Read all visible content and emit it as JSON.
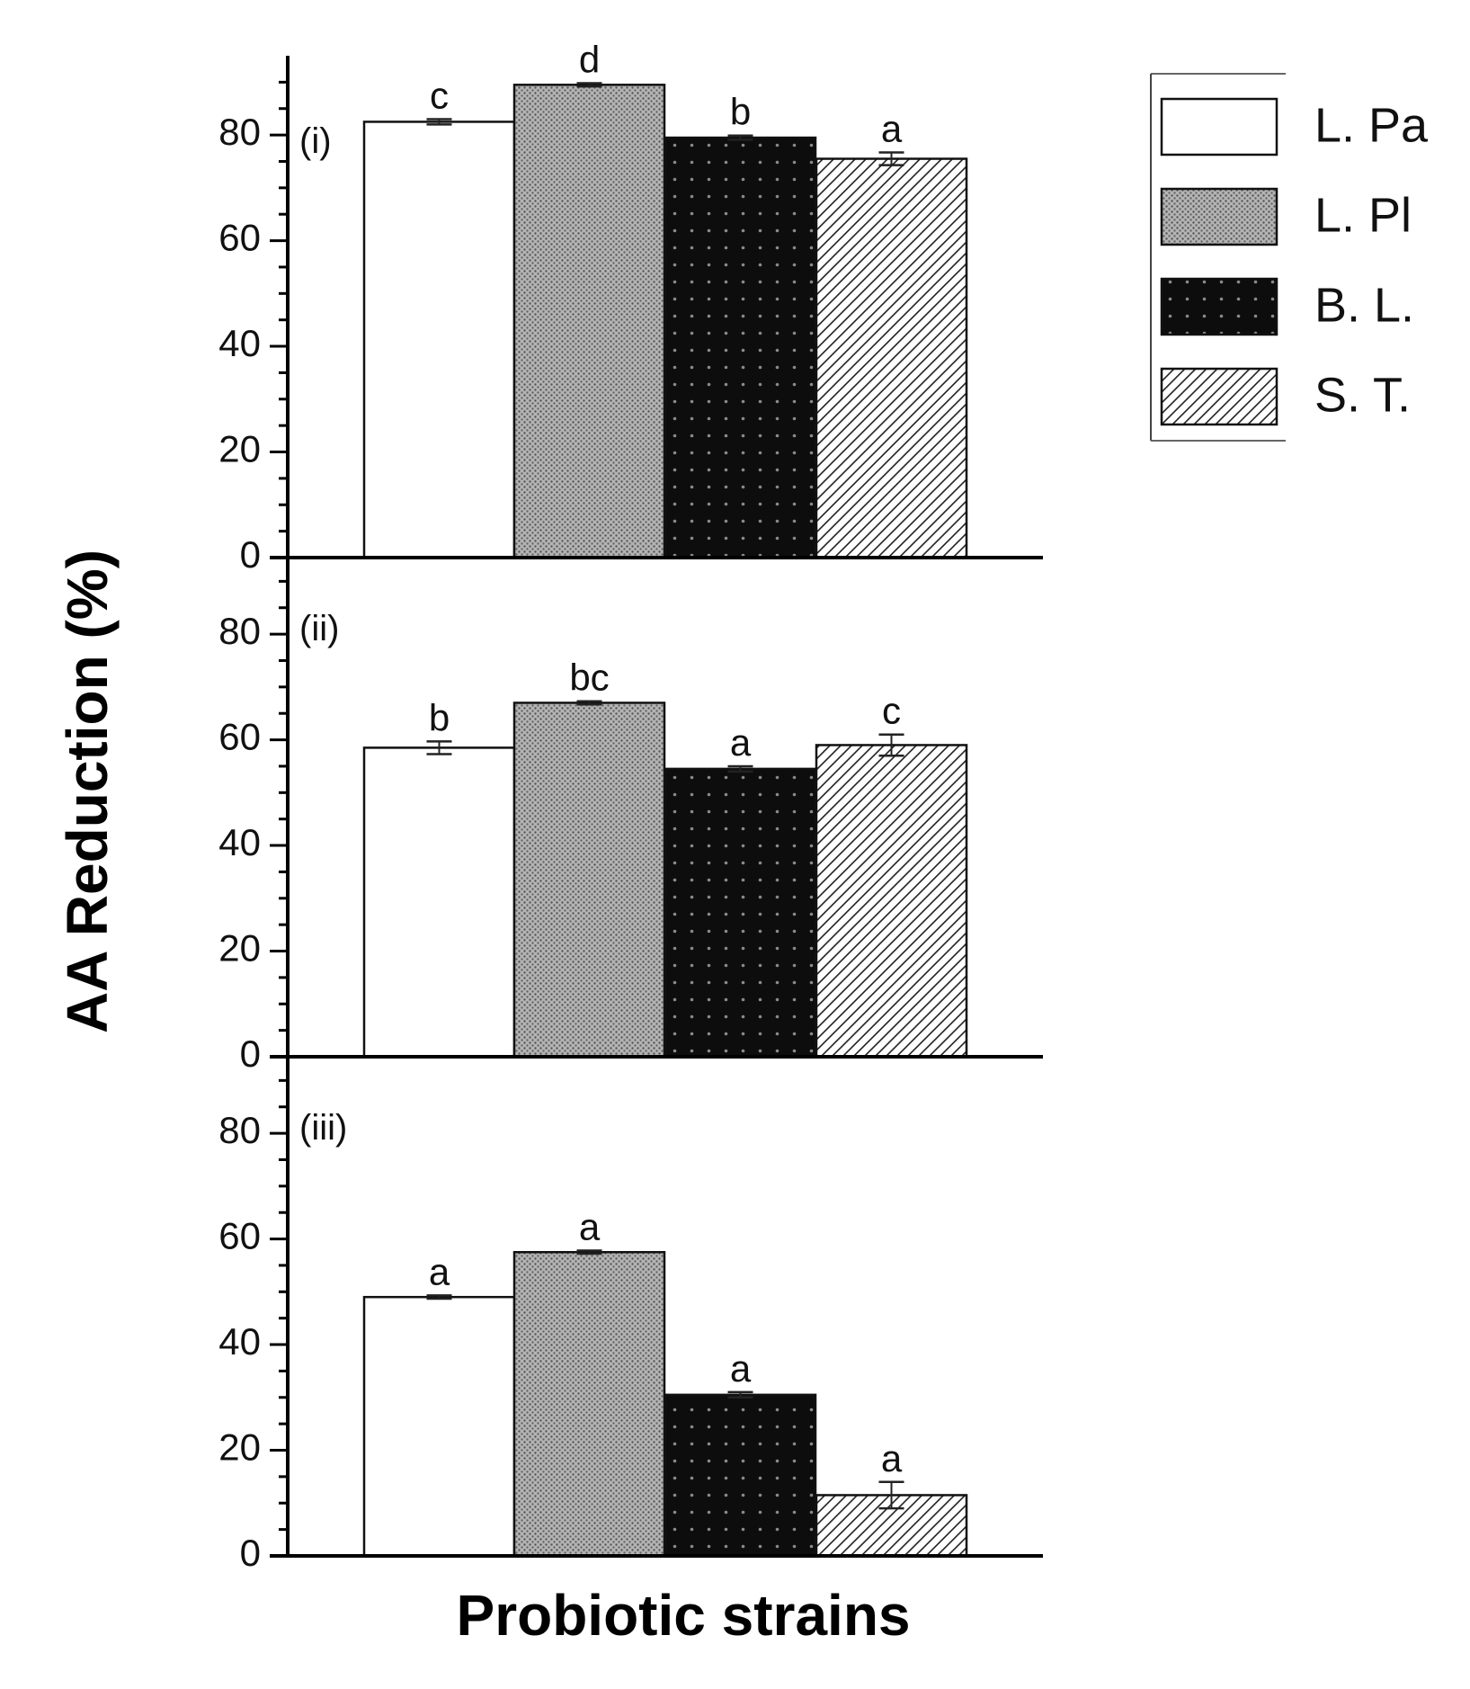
{
  "chart_data": {
    "type": "bar",
    "ylabel": "AA Reduction (%)",
    "xlabel": "Probiotic strains",
    "ylim": [
      0,
      95
    ],
    "yticks": [
      0,
      20,
      40,
      60,
      80
    ],
    "legend_position": "top-right",
    "series": [
      {
        "name": "L. Pa",
        "pattern": "white"
      },
      {
        "name": "L. Pl",
        "pattern": "grey-dots"
      },
      {
        "name": "B. L.",
        "pattern": "black-dots"
      },
      {
        "name": "S. T.",
        "pattern": "hatch"
      }
    ],
    "panels": [
      {
        "label": "(i)",
        "values": [
          82.5,
          89.5,
          79.5,
          75.5
        ],
        "errors": [
          0.5,
          0.3,
          0.4,
          1.2
        ],
        "letters": [
          "c",
          "d",
          "b",
          "a"
        ]
      },
      {
        "label": "(ii)",
        "values": [
          58.5,
          67,
          54.5,
          59
        ],
        "errors": [
          1.2,
          0.3,
          0.5,
          2.0
        ],
        "letters": [
          "b",
          "bc",
          "a",
          "c"
        ]
      },
      {
        "label": "(iii)",
        "values": [
          49,
          57.5,
          30.5,
          11.5
        ],
        "errors": [
          0.3,
          0.3,
          0.5,
          2.5
        ],
        "letters": [
          "a",
          "a",
          "a",
          "a"
        ]
      }
    ]
  },
  "colors": {
    "axis": "#000000",
    "white_fill": "#ffffff",
    "grey_fill": "#a8a8a8",
    "black_fill": "#111111",
    "hatch_fill": "#ffffff"
  }
}
